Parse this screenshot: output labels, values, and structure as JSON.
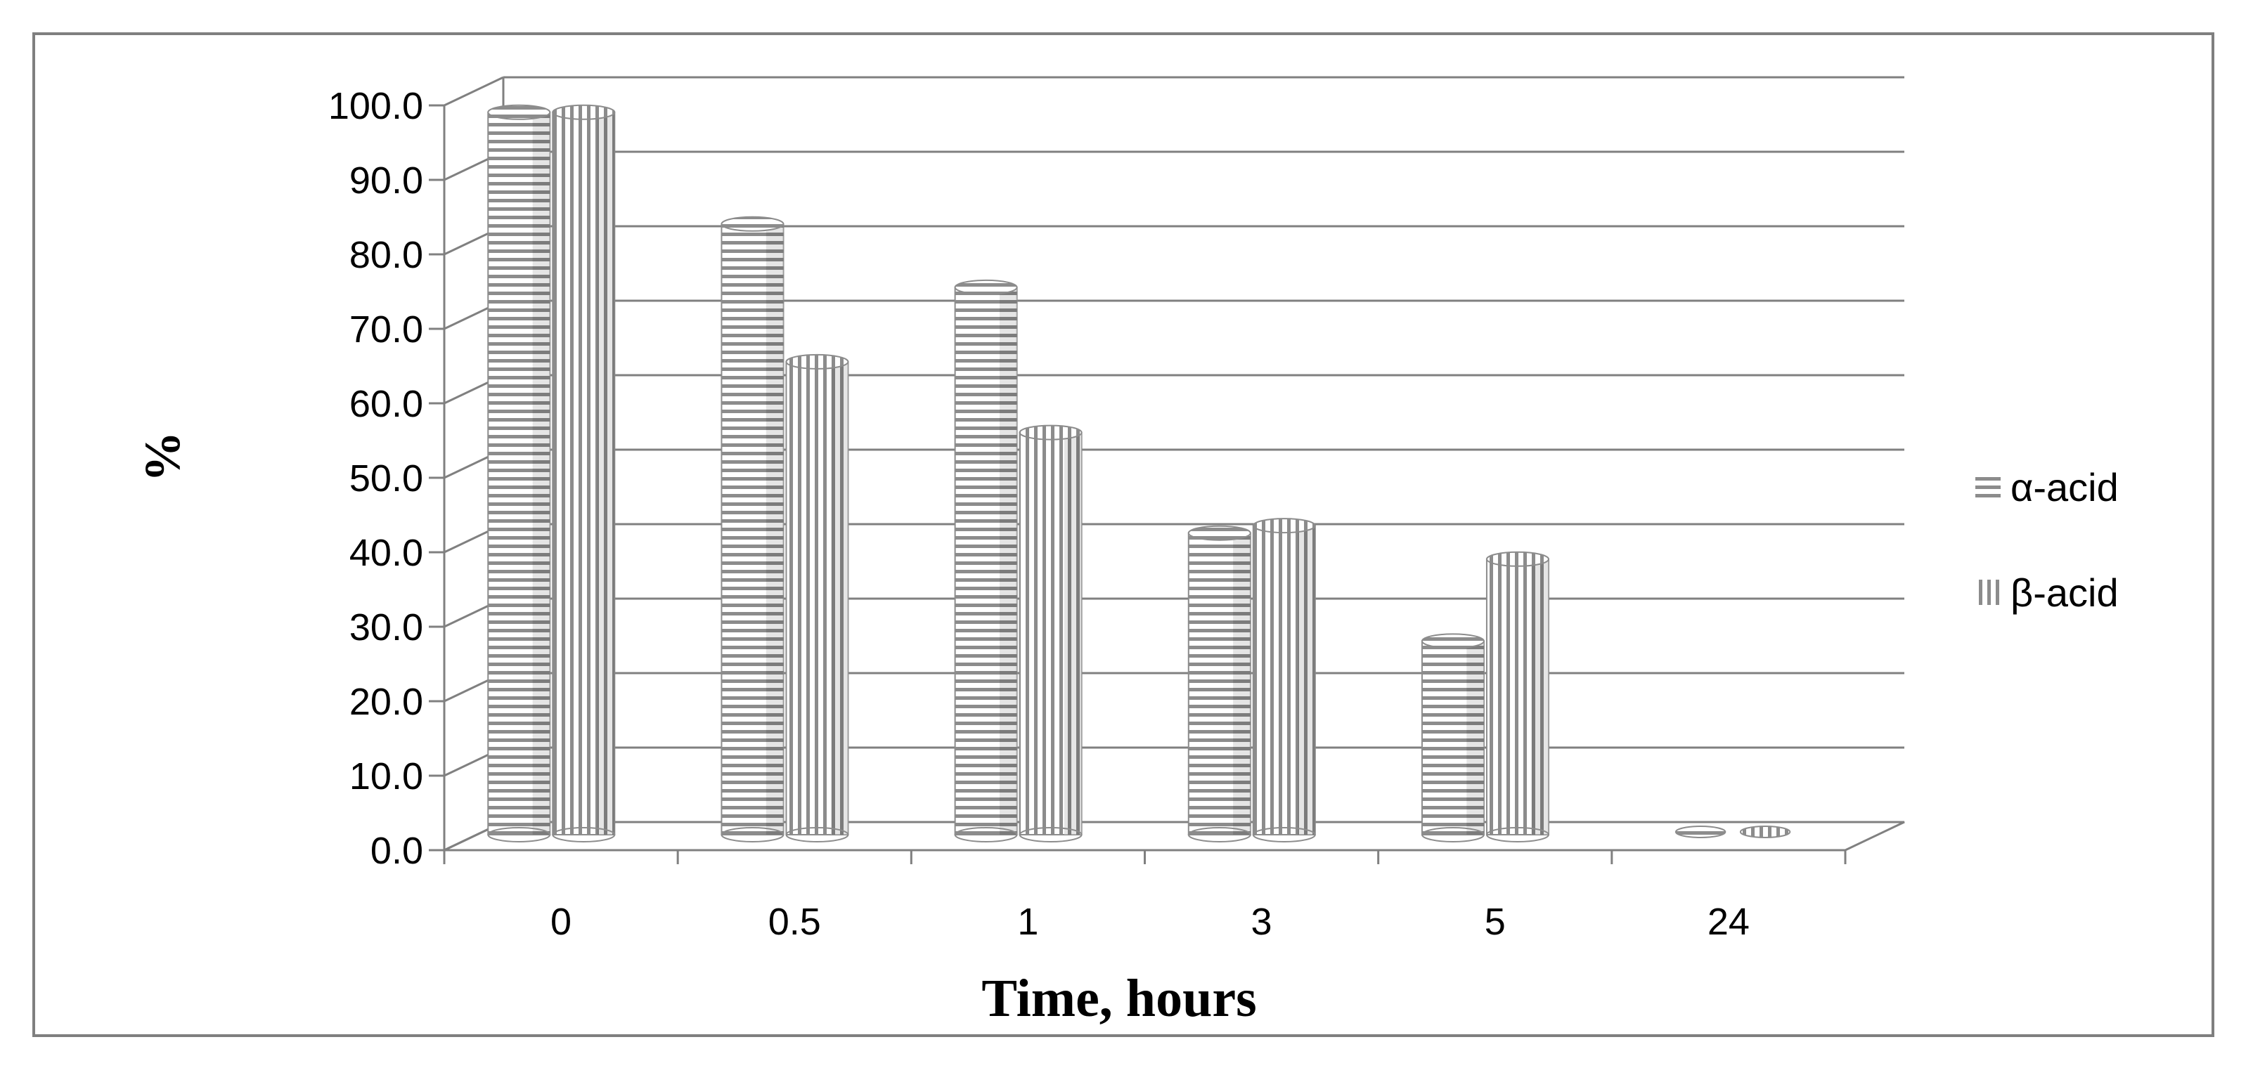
{
  "chart_data": {
    "type": "bar",
    "title": "",
    "xlabel": "Time, hours",
    "ylabel": "%",
    "categories": [
      "0",
      "0.5",
      "1",
      "3",
      "5",
      "24"
    ],
    "series": [
      {
        "name": "α-acid",
        "values": [
          97.0,
          82.0,
          73.5,
          40.5,
          26.0,
          0.0
        ],
        "pattern": "horizontal-stripes"
      },
      {
        "name": "β-acid",
        "values": [
          97.0,
          63.5,
          54.0,
          41.5,
          37.0,
          0.0
        ],
        "pattern": "vertical-stripes"
      }
    ],
    "ylim": [
      0,
      100
    ],
    "yticks": [
      "0.0",
      "10.0",
      "20.0",
      "30.0",
      "40.0",
      "50.0",
      "60.0",
      "70.0",
      "80.0",
      "90.0",
      "100.0"
    ],
    "grid": true,
    "legend_position": "right",
    "style": "3d-clustered-column",
    "colors": {
      "bar_light": "#ffffff",
      "bar_dark": "#8c8c8c",
      "grid": "#808080",
      "axis": "#808080",
      "frame": "#7f7f7f"
    }
  }
}
